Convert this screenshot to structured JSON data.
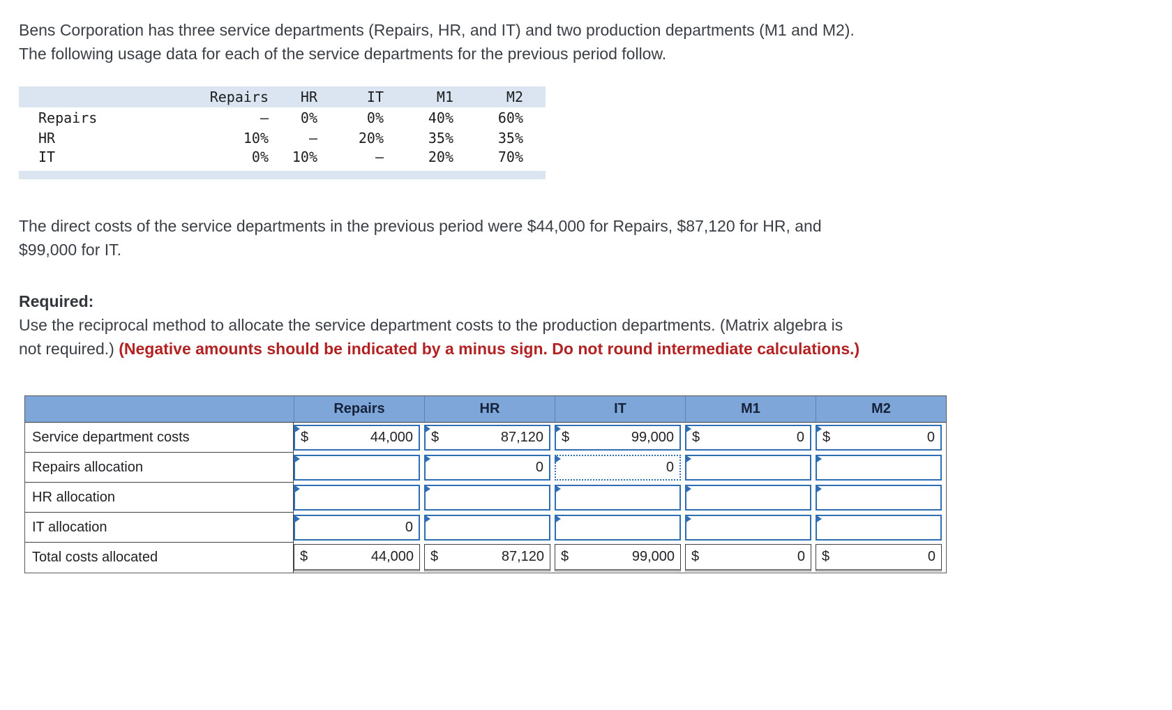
{
  "intro": {
    "line1": "Bens Corporation has three service departments (Repairs, HR, and IT) and two production departments (M1 and M2).",
    "line2": "The following usage data for each of the service departments for the previous period follow."
  },
  "usage_table": {
    "col_headers": [
      "Repairs",
      "HR",
      "IT",
      "M1",
      "M2"
    ],
    "rows": [
      {
        "label": "Repairs",
        "values": [
          "–",
          "0%",
          "0%",
          "40%",
          "60%"
        ]
      },
      {
        "label": "HR",
        "values": [
          "10%",
          "–",
          "20%",
          "35%",
          "35%"
        ]
      },
      {
        "label": "IT",
        "values": [
          "0%",
          "10%",
          "–",
          "20%",
          "70%"
        ]
      }
    ]
  },
  "costs": {
    "line1": "The direct costs of the service departments in the previous period were $44,000 for Repairs, $87,120 for HR, and",
    "line2": "$99,000 for IT."
  },
  "required": {
    "label": "Required:",
    "instruction_line1": "Use the reciprocal method to allocate the service department costs to the production departments. (Matrix algebra is",
    "instruction_line2": "not required.)",
    "warning": "(Negative amounts should be indicated by a minus sign. Do not round intermediate calculations.)"
  },
  "allocation_table": {
    "col_headers": [
      "Repairs",
      "HR",
      "IT",
      "M1",
      "M2"
    ],
    "rows": [
      {
        "label": "Service department costs",
        "cells": [
          {
            "prefix": "$",
            "value": "44,000"
          },
          {
            "prefix": "$",
            "value": "87,120"
          },
          {
            "prefix": "$",
            "value": "99,000"
          },
          {
            "prefix": "$",
            "value": "0"
          },
          {
            "prefix": "$",
            "value": "0"
          }
        ]
      },
      {
        "label": "Repairs allocation",
        "cells": [
          {
            "prefix": "",
            "value": ""
          },
          {
            "prefix": "",
            "value": "0"
          },
          {
            "prefix": "",
            "value": "0"
          },
          {
            "prefix": "",
            "value": ""
          },
          {
            "prefix": "",
            "value": ""
          }
        ]
      },
      {
        "label": "HR allocation",
        "cells": [
          {
            "prefix": "",
            "value": ""
          },
          {
            "prefix": "",
            "value": ""
          },
          {
            "prefix": "",
            "value": ""
          },
          {
            "prefix": "",
            "value": ""
          },
          {
            "prefix": "",
            "value": ""
          }
        ]
      },
      {
        "label": "IT allocation",
        "cells": [
          {
            "prefix": "",
            "value": "0"
          },
          {
            "prefix": "",
            "value": ""
          },
          {
            "prefix": "",
            "value": ""
          },
          {
            "prefix": "",
            "value": ""
          },
          {
            "prefix": "",
            "value": ""
          }
        ]
      },
      {
        "label": "Total costs allocated",
        "cells": [
          {
            "prefix": "$",
            "value": "44,000"
          },
          {
            "prefix": "$",
            "value": "87,120"
          },
          {
            "prefix": "$",
            "value": "99,000"
          },
          {
            "prefix": "$",
            "value": "0"
          },
          {
            "prefix": "$",
            "value": "0"
          }
        ]
      }
    ]
  },
  "colors": {
    "header_blue": "#7fa6d9",
    "band_blue": "#dbe5f1",
    "cell_border_blue": "#2f6eb2",
    "total_border": "#3f4043",
    "warning_red": "#b22222"
  }
}
